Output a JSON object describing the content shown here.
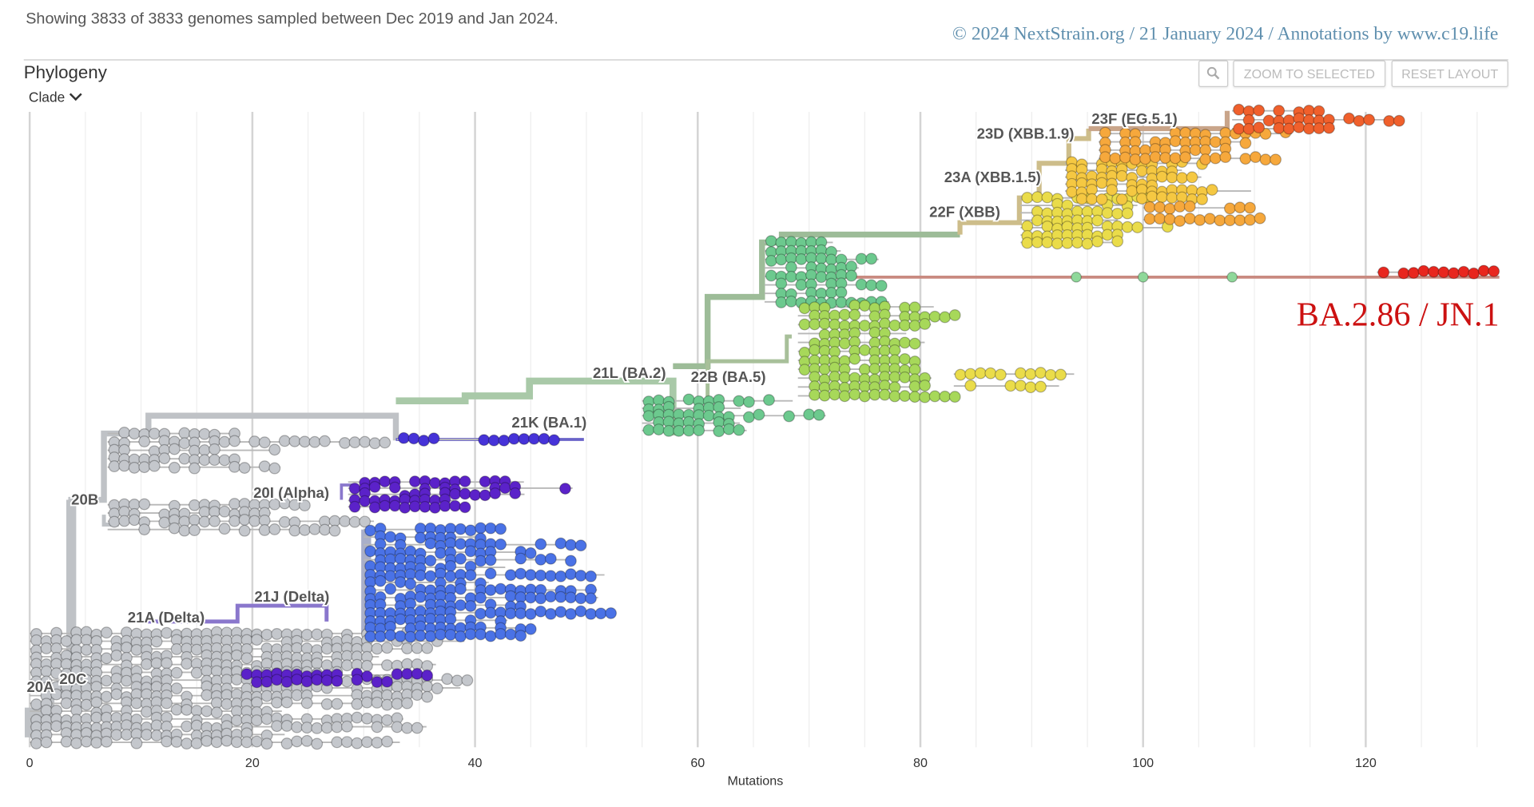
{
  "header": {
    "summary": "Showing 3833 of 3833 genomes sampled between Dec 2019 and Jan 2024.",
    "credit": "© 2024 NextStrain.org / 21 January 2024 / Annotations by www.c19.life"
  },
  "panel": {
    "title": "Phylogeny",
    "color_by": "Clade",
    "zoom_search_icon": "magnifier-icon",
    "zoom_to_selected": "ZOOM TO SELECTED",
    "reset_layout": "RESET LAYOUT"
  },
  "chart_data": {
    "type": "scatter",
    "subtype": "phylogenetic tree (divergence)",
    "xlabel": "Mutations",
    "xlim": [
      0,
      133
    ],
    "x_ticks": [
      "0",
      "20",
      "40",
      "60",
      "80",
      "100",
      "120"
    ],
    "grid": true,
    "annotation": "BA.2.86 / JN.1",
    "clades": [
      {
        "name": "20A",
        "color": "#c4c7cc"
      },
      {
        "name": "20B",
        "color": "#c4c7cc"
      },
      {
        "name": "20C",
        "color": "#c4c7cc"
      },
      {
        "name": "20I (Alpha)",
        "color": "#5b22c9"
      },
      {
        "name": "21A (Delta)",
        "color": "#5b22c9"
      },
      {
        "name": "21J (Delta)",
        "color": "#4a72e6"
      },
      {
        "name": "21K (BA.1)",
        "color": "#4633d8"
      },
      {
        "name": "21L (BA.2)",
        "color": "#6cc98e"
      },
      {
        "name": "22B (BA.5)",
        "color": "#a7d85a"
      },
      {
        "name": "22F (XBB)",
        "color": "#eadc4a"
      },
      {
        "name": "23A (XBB.1.5)",
        "color": "#f5c842"
      },
      {
        "name": "23D (XBB.1.9)",
        "color": "#f6a83c"
      },
      {
        "name": "23F (EG.5.1)",
        "color": "#f0602c"
      },
      {
        "name": "BA.2.86 / JN.1",
        "color": "#e8261e"
      }
    ]
  }
}
